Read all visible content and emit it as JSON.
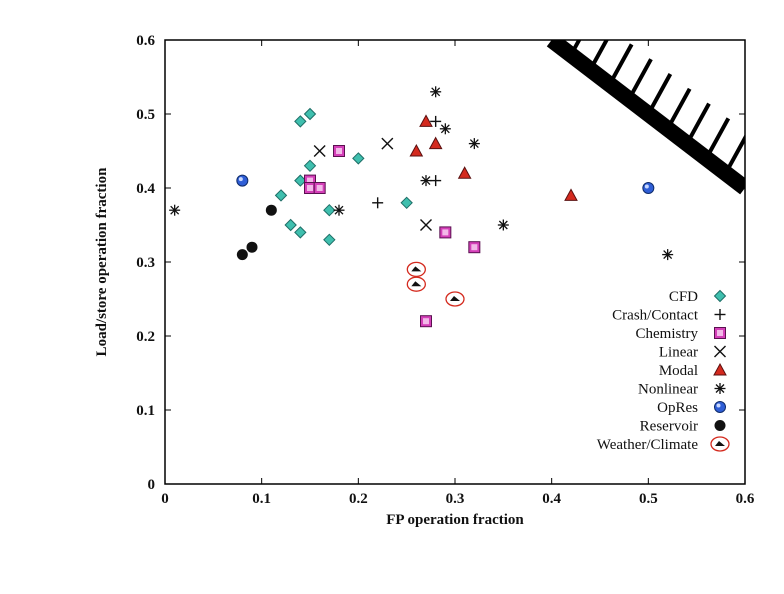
{
  "chart_data": {
    "type": "scatter",
    "xlabel": "FP operation fraction",
    "ylabel": "Load/store operation fraction",
    "xlim": [
      0,
      0.6
    ],
    "ylim": [
      0,
      0.6
    ],
    "xticks": [
      "0",
      "0.1",
      "0.2",
      "0.3",
      "0.4",
      "0.5",
      "0.6"
    ],
    "yticks": [
      "0",
      "0.1",
      "0.2",
      "0.3",
      "0.4",
      "0.5",
      "0.6"
    ],
    "grid": false,
    "legend_position": "bottom-right",
    "forbidden_region": "upper-right corner above the line where FP + Load/store fraction exceeds 1",
    "series": [
      {
        "name": "CFD",
        "marker": "diamond",
        "color": "#3fbfae",
        "x": [
          0.14,
          0.15,
          0.14,
          0.15,
          0.12,
          0.13,
          0.14,
          0.17,
          0.17,
          0.15,
          0.2,
          0.25
        ],
        "y": [
          0.49,
          0.5,
          0.41,
          0.43,
          0.39,
          0.35,
          0.34,
          0.33,
          0.37,
          0.4,
          0.44,
          0.38
        ]
      },
      {
        "name": "Crash/Contact",
        "marker": "plus",
        "color": "#111111",
        "x": [
          0.22,
          0.28,
          0.28
        ],
        "y": [
          0.38,
          0.41,
          0.49
        ]
      },
      {
        "name": "Chemistry",
        "marker": "square",
        "color": "#d43fb8",
        "x": [
          0.15,
          0.15,
          0.16,
          0.18,
          0.29,
          0.32,
          0.27
        ],
        "y": [
          0.41,
          0.4,
          0.4,
          0.45,
          0.34,
          0.32,
          0.22
        ]
      },
      {
        "name": "Linear",
        "marker": "x",
        "color": "#111111",
        "x": [
          0.16,
          0.23,
          0.27
        ],
        "y": [
          0.45,
          0.46,
          0.35
        ]
      },
      {
        "name": "Modal",
        "marker": "triangle",
        "color": "#d42a1e",
        "x": [
          0.27,
          0.28,
          0.26,
          0.31,
          0.42
        ],
        "y": [
          0.49,
          0.46,
          0.45,
          0.42,
          0.39
        ]
      },
      {
        "name": "Nonlinear",
        "marker": "star",
        "color": "#111111",
        "x": [
          0.01,
          0.18,
          0.28,
          0.29,
          0.32,
          0.27,
          0.35,
          0.52
        ],
        "y": [
          0.37,
          0.37,
          0.53,
          0.48,
          0.46,
          0.41,
          0.35,
          0.31
        ]
      },
      {
        "name": "OpRes",
        "marker": "circle-blue",
        "color": "#2f5ed6",
        "x": [
          0.08,
          0.5
        ],
        "y": [
          0.41,
          0.4
        ]
      },
      {
        "name": "Reservoir",
        "marker": "circle-black",
        "color": "#111111",
        "x": [
          0.11,
          0.08,
          0.09
        ],
        "y": [
          0.37,
          0.31,
          0.32
        ]
      },
      {
        "name": "Weather/Climate",
        "marker": "weather",
        "color": "#d42a1e",
        "x": [
          0.26,
          0.26,
          0.3
        ],
        "y": [
          0.29,
          0.27,
          0.25
        ]
      }
    ]
  }
}
